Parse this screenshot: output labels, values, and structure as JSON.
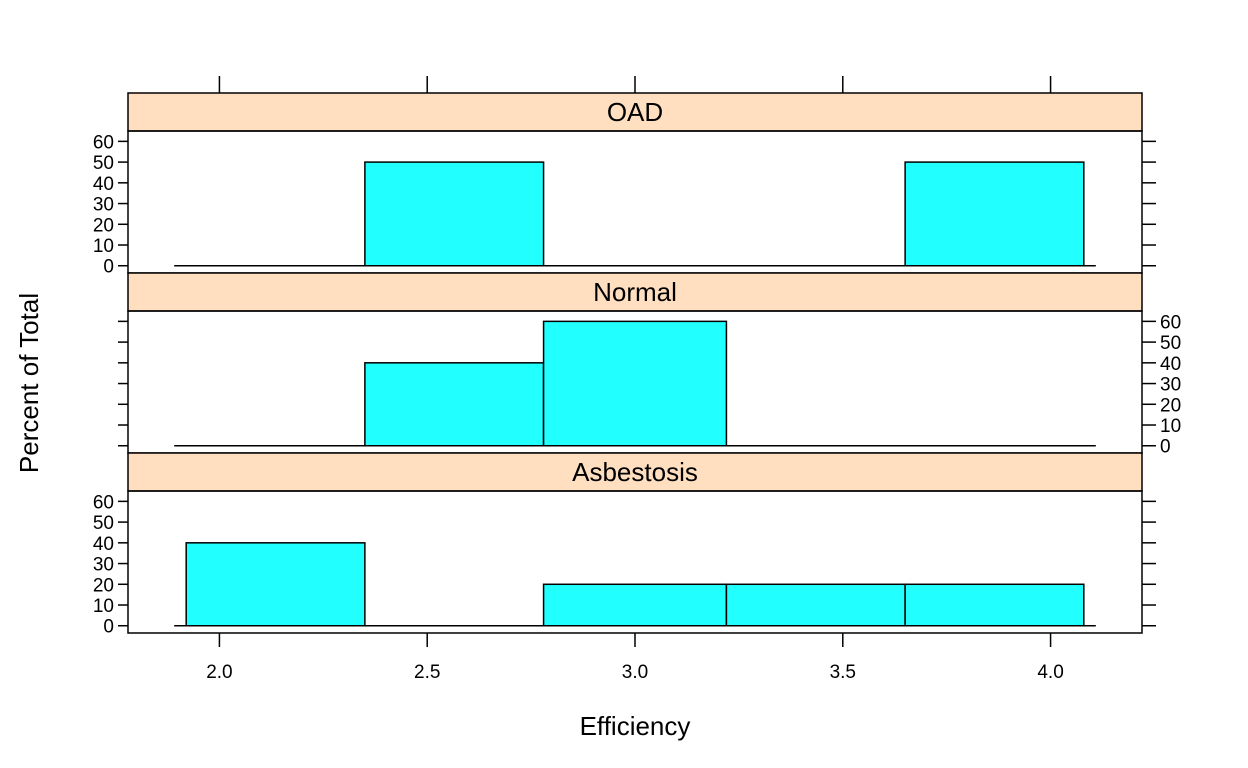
{
  "chart_data": {
    "type": "bar",
    "subtype": "trellis-histogram",
    "xlabel": "Efficiency",
    "ylabel": "Percent of Total",
    "xlim": [
      1.78,
      4.22
    ],
    "ylim": [
      -3.5,
      65
    ],
    "x_ticks": [
      "2.0",
      "2.5",
      "3.0",
      "3.5",
      "4.0"
    ],
    "y_ticks": [
      "0",
      "10",
      "20",
      "30",
      "40",
      "50",
      "60"
    ],
    "bin_edges": [
      1.92,
      2.35,
      2.78,
      3.22,
      3.65,
      4.08
    ],
    "bar_color": "#22ffff",
    "strip_color": "#ffdfbf",
    "panels": [
      {
        "name": "OAD",
        "values": [
          0,
          50,
          0,
          0,
          50
        ],
        "y_axis_side": "left"
      },
      {
        "name": "Normal",
        "values": [
          0,
          40,
          60,
          0,
          0
        ],
        "y_axis_side": "right"
      },
      {
        "name": "Asbestosis",
        "values": [
          40,
          0,
          20,
          20,
          20
        ],
        "y_axis_side": "left"
      }
    ]
  }
}
